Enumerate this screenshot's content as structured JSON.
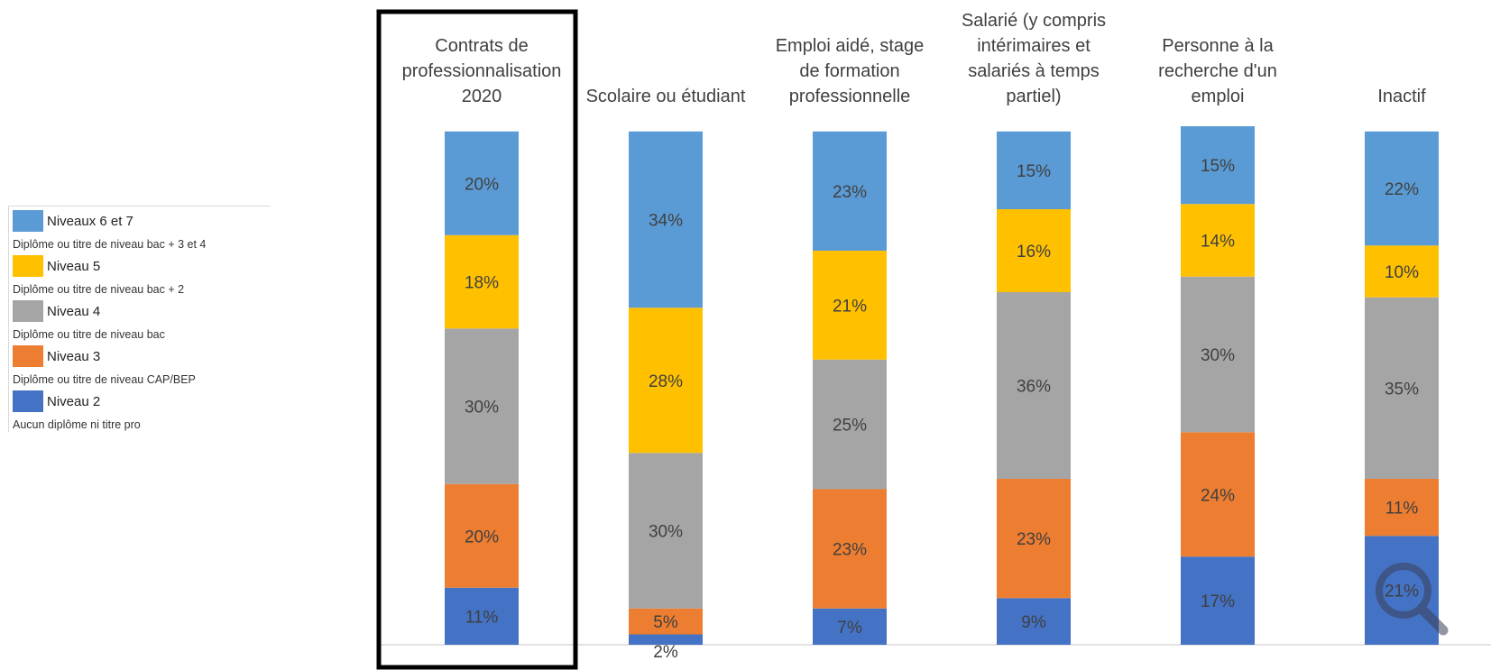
{
  "colors": {
    "niveaux_6_7": "#5b9bd5",
    "niveau_5": "#ffc000",
    "niveau_4": "#a5a5a5",
    "niveau_3": "#ed7d31",
    "niveau_2": "#4472c4"
  },
  "legend": [
    {
      "label": "Niveaux 6 et 7",
      "sub": "Diplôme ou titre de niveau bac + 3 et 4",
      "color": "#5b9bd5"
    },
    {
      "label": "Niveau 5",
      "sub": "Diplôme ou titre de niveau bac + 2",
      "color": "#ffc000"
    },
    {
      "label": "Niveau 4",
      "sub": "Diplôme ou titre de niveau bac",
      "color": "#a5a5a5"
    },
    {
      "label": "Niveau 3",
      "sub": "Diplôme ou titre de niveau CAP/BEP",
      "color": "#ed7d31"
    },
    {
      "label": "Niveau 2",
      "sub": "Aucun diplôme ni titre pro",
      "color": "#4472c4"
    }
  ],
  "chart_data": {
    "type": "bar",
    "stacked": true,
    "percent_stacked": true,
    "legend_position": "left",
    "highlighted_category": "Contrats de professionnalisation 2020",
    "categories": [
      "Contrats de professionnalisation 2020",
      "Scolaire ou étudiant",
      "Emploi aidé, stage de formation professionnelle",
      "Salarié (y compris intérimaires et salariés à temps partiel)",
      "Personne à la recherche d'un emploi",
      "Inactif"
    ],
    "category_lines": [
      [
        "Contrats de",
        "professionnalisation",
        "2020"
      ],
      [
        "Scolaire ou étudiant"
      ],
      [
        "Emploi aidé, stage",
        "de formation",
        "professionnelle"
      ],
      [
        "Salarié (y compris",
        "intérimaires et",
        "salariés à temps",
        "partiel)"
      ],
      [
        "Personne à la",
        "recherche d'un",
        "emploi"
      ],
      [
        "Inactif"
      ]
    ],
    "series": [
      {
        "name": "Niveau 2",
        "color": "#4472c4",
        "values": [
          11,
          2,
          7,
          9,
          17,
          21
        ],
        "labels": [
          "11%",
          "2%",
          "7%",
          "9%",
          "17%",
          "21%"
        ]
      },
      {
        "name": "Niveau 3",
        "color": "#ed7d31",
        "values": [
          20,
          5,
          23,
          23,
          24,
          11
        ],
        "labels": [
          "20%",
          "5%",
          "23%",
          "23%",
          "24%",
          "11%"
        ]
      },
      {
        "name": "Niveau 4",
        "color": "#a5a5a5",
        "values": [
          30,
          30,
          25,
          36,
          30,
          35
        ],
        "labels": [
          "30%",
          "30%",
          "25%",
          "36%",
          "30%",
          "35%"
        ]
      },
      {
        "name": "Niveau 5",
        "color": "#ffc000",
        "values": [
          18,
          28,
          21,
          16,
          14,
          10
        ],
        "labels": [
          "18%",
          "28%",
          "21%",
          "16%",
          "14%",
          "10%"
        ]
      },
      {
        "name": "Niveaux 6 et 7",
        "color": "#5b9bd5",
        "values": [
          20,
          34,
          23,
          15,
          15,
          22
        ],
        "labels": [
          "20%",
          "34%",
          "23%",
          "15%",
          "15%",
          "22%"
        ]
      }
    ],
    "ylim": [
      0,
      100
    ]
  }
}
